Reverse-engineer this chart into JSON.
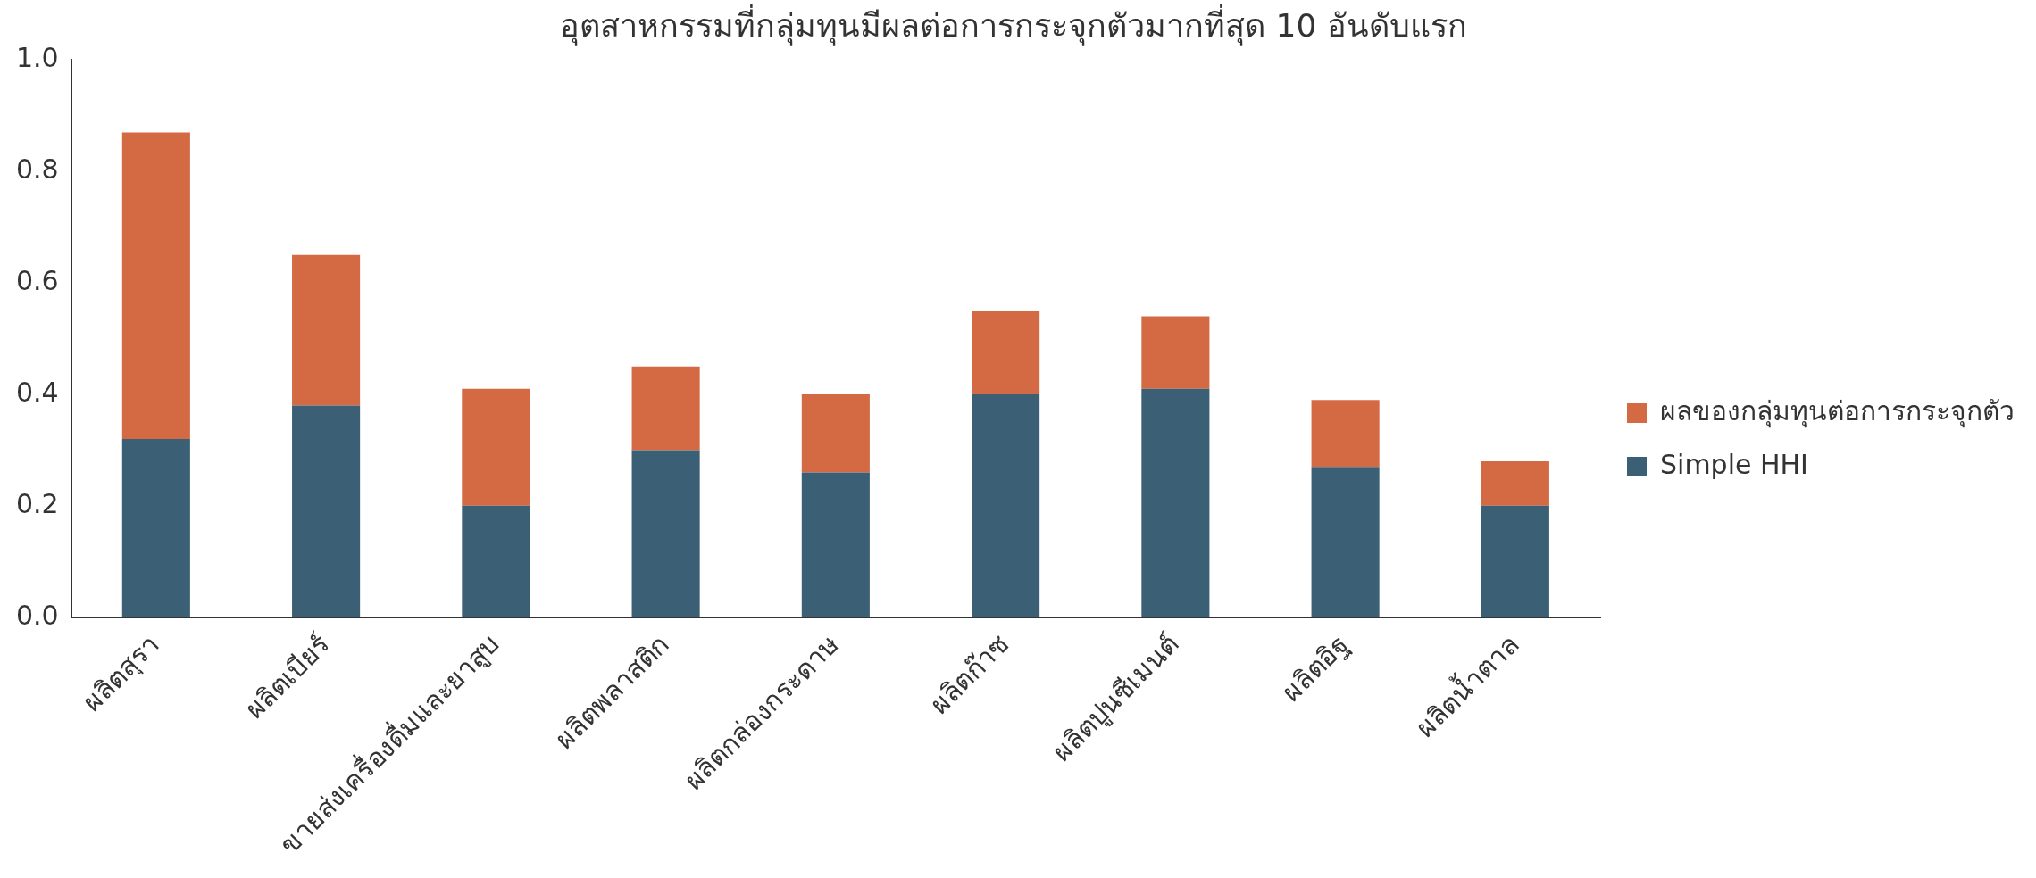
{
  "chart_data": {
    "type": "bar",
    "title": "อุตสาหกรรมที่กลุ่มทุนมีผลต่อการกระจุกตัวมากที่สุด 10 อันดับแรก",
    "categories": [
      "ผลิตสุรา",
      "ผลิตเบียร์",
      "ขายส่งเครื่องดื่มและยาสูบ",
      "ผลิตพลาสติก",
      "ผลิตกล่องกระดาษ",
      "ผลิตก๊าซ",
      "ผลิตปูนซีเมนต์",
      "ผลิตอิฐ",
      "ผลิตน้ำตาล"
    ],
    "series": [
      {
        "name": "Simple HHI",
        "color": "#3b5f75",
        "values": [
          0.32,
          0.38,
          0.2,
          0.3,
          0.26,
          0.4,
          0.41,
          0.27,
          0.2
        ]
      },
      {
        "name": "ผลของกลุ่มทุนต่อการกระจุกตัว",
        "color": "#d46a43",
        "values": [
          0.55,
          0.27,
          0.21,
          0.15,
          0.14,
          0.15,
          0.13,
          0.12,
          0.08
        ]
      }
    ],
    "stacked": true,
    "ylim": [
      0,
      1
    ],
    "yticks": [
      {
        "value": 0,
        "label": "0.0"
      },
      {
        "value": 0.2,
        "label": "0.2"
      },
      {
        "value": 0.4,
        "label": "0.4"
      },
      {
        "value": 0.6,
        "label": "0.6"
      },
      {
        "value": 0.8,
        "label": "0.8"
      },
      {
        "value": 1,
        "label": "1.0"
      }
    ],
    "grid": false,
    "legend": "right"
  }
}
